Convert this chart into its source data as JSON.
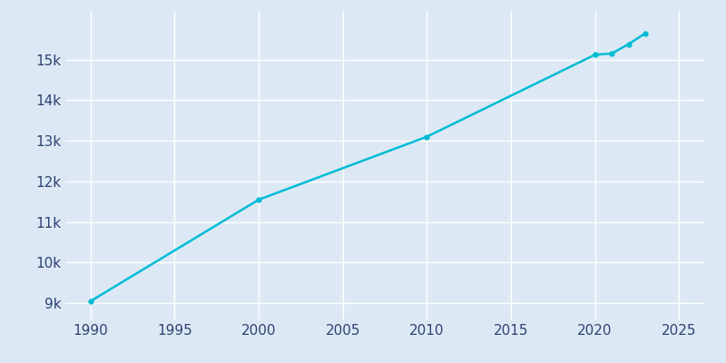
{
  "years": [
    1990,
    2000,
    2010,
    2020,
    2021,
    2022,
    2023
  ],
  "population": [
    9050,
    11550,
    13100,
    15120,
    15150,
    15380,
    15650
  ],
  "line_color": "#00bcd4",
  "axes_facecolor": "#dce9f5",
  "figure_facecolor": "#dce9f5",
  "grid_color": "#ffffff",
  "tick_color": "#2e4272",
  "xlim": [
    1988.5,
    2026.5
  ],
  "ylim": [
    8600,
    16200
  ],
  "xticks": [
    1990,
    1995,
    2000,
    2005,
    2010,
    2015,
    2020,
    2025
  ],
  "yticks": [
    9000,
    10000,
    11000,
    12000,
    13000,
    14000,
    15000
  ],
  "ytick_labels": [
    "9k",
    "10k",
    "11k",
    "12k",
    "13k",
    "14k",
    "15k"
  ],
  "line_width": 1.8,
  "marker": "o",
  "marker_size": 3.5,
  "tick_fontsize": 11
}
